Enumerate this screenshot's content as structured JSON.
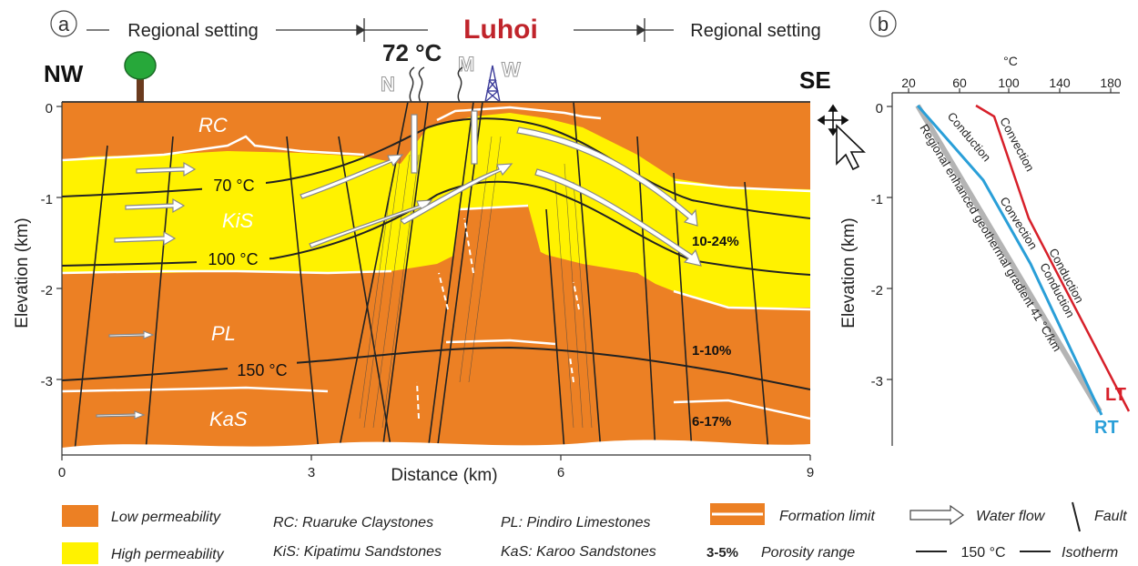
{
  "panel_a": {
    "label": "a",
    "header": {
      "left": "Regional setting",
      "center": "Luhoi",
      "right": "Regional setting"
    },
    "corner_left": "NW",
    "corner_right": "SE",
    "surface_temp": "72 °C",
    "spring_labels": [
      "N",
      "M",
      "W"
    ],
    "units": {
      "RC": "RC",
      "KiS": "KiS",
      "PL": "PL",
      "KaS": "KaS"
    },
    "isotherms": [
      "70 °C",
      "100 °C",
      "150 °C"
    ],
    "porosity": [
      "10-24%",
      "1-10%",
      "6-17%"
    ],
    "y_axis_title": "Elevation (km)",
    "y_ticks": [
      "0",
      "-1",
      "-2",
      "-3"
    ],
    "x_axis_title": "Distance (km)",
    "x_ticks": [
      "0",
      "3",
      "6",
      "9"
    ],
    "colors": {
      "low": "#ec8024",
      "high": "#fff200"
    }
  },
  "panel_b": {
    "label": "b",
    "x_unit": "°C",
    "x_ticks": [
      "20",
      "60",
      "100",
      "140",
      "180"
    ],
    "y_axis_title": "Elevation (km)",
    "y_ticks": [
      "0",
      "-1",
      "-2",
      "-3"
    ],
    "profile_labels": {
      "lt_conv": "Convection",
      "lt_cond": "Conduction",
      "rt_cond1": "Conduction",
      "rt_conv": "Convection",
      "rt_cond2": "Conduction",
      "regional": "Regional enhanced geothermal gradient 41 °C/km"
    },
    "LT": "LT",
    "RT": "RT",
    "colors": {
      "LT": "#d7202a",
      "RT": "#2a9fd8",
      "regional": "#b4b4b4"
    }
  },
  "legend": {
    "low_perm": "Low permeability",
    "high_perm": "High permeability",
    "rc": "RC:  Ruaruke Claystones",
    "kis": "KiS:  Kipatimu Sandstones",
    "pl": "PL:  Pindiro Limestones",
    "kas": "KaS:  Karoo Sandstones",
    "formation_limit": "Formation limit",
    "water_flow": "Water flow",
    "fault": "Fault",
    "porosity_value": "3-5%",
    "porosity_range": "Porosity range",
    "isotherm_value": "150 °C",
    "isotherm": "Isotherm"
  }
}
